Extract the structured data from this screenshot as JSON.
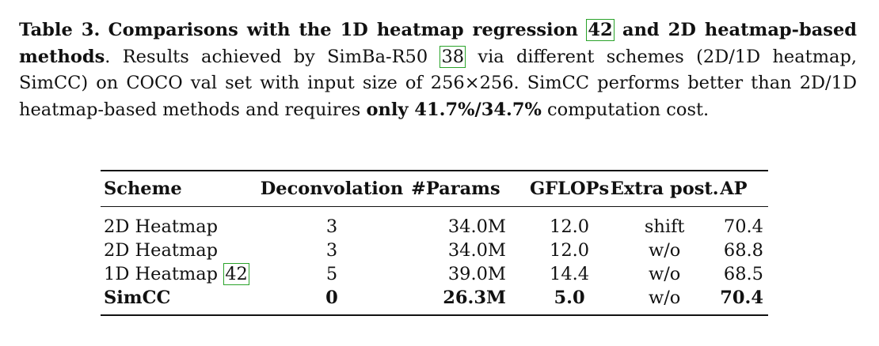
{
  "caption": {
    "label": "Table 3.",
    "title_a": "Comparisons with the 1D heatmap regression",
    "title_ref": "42",
    "title_b": "and 2D heatmap-based methods",
    "text_a": ". Results achieved by SimBa-R50",
    "ref_38": "38",
    "text_b": "via different schemes (2D/1D heatmap, SimCC) on COCO val set with input size of 256×256. SimCC performs better than 2D/1D heatmap-based methods and requires",
    "bold_tail": "only 41.7%/34.7%",
    "text_c": "computation cost."
  },
  "table": {
    "headers": [
      "Scheme",
      "Deconvolation",
      "#Params",
      "GFLOPs",
      "Extra post.",
      "AP"
    ],
    "rows": [
      {
        "scheme": "2D Heatmap",
        "ref": "",
        "deconv": "3",
        "params": "34.0M",
        "gflops": "12.0",
        "post": "shift",
        "ap": "70.4"
      },
      {
        "scheme": "2D Heatmap",
        "ref": "",
        "deconv": "3",
        "params": "34.0M",
        "gflops": "12.0",
        "post": "w/o",
        "ap": "68.8"
      },
      {
        "scheme": "1D Heatmap",
        "ref": "42",
        "deconv": "5",
        "params": "39.0M",
        "gflops": "14.4",
        "post": "w/o",
        "ap": "68.5"
      },
      {
        "scheme": "SimCC",
        "ref": "",
        "deconv": "0",
        "params": "26.3M",
        "gflops": "5.0",
        "post": "w/o",
        "ap": "70.4"
      }
    ]
  },
  "colors": {
    "citation_box": "#2aa32a",
    "text": "#111111"
  }
}
